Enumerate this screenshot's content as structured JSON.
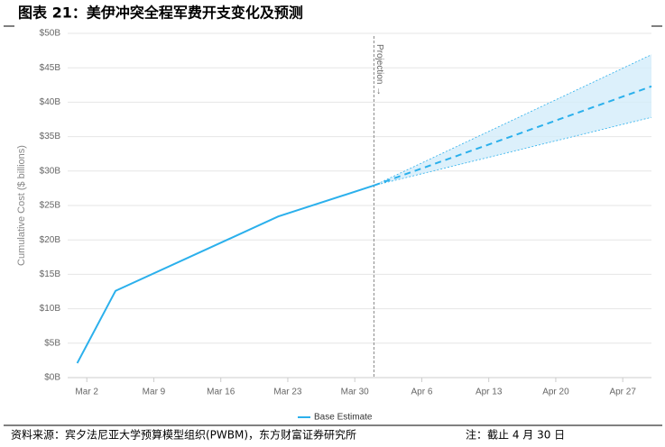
{
  "chart_data": {
    "type": "line",
    "title": "图表 21：美伊冲突全程军费开支变化及预测",
    "ylabel": "Cumulative Cost ($ billions)",
    "x": [
      "Mar 1",
      "Mar 5",
      "Mar 22",
      "Apr 1"
    ],
    "series": [
      {
        "name": "Base Estimate",
        "color": "#2bb0ec",
        "values": [
          2.1,
          12.6,
          23.4,
          27.9
        ]
      }
    ],
    "projection": {
      "label": "Projection →",
      "x": [
        "Apr 1",
        "Apr 30"
      ],
      "values": [
        27.9,
        42.3
      ],
      "upper": [
        27.9,
        46.9
      ],
      "lower": [
        27.9,
        37.8
      ],
      "color": "#2bb0ec",
      "band_color": "#d3ecfa"
    },
    "xlim": [
      "Feb 28",
      "Apr 30"
    ],
    "xticks": [
      "Mar 2",
      "Mar 9",
      "Mar 16",
      "Mar 23",
      "Mar 30",
      "Apr 6",
      "Apr 13",
      "Apr 20",
      "Apr 27"
    ],
    "ylim": [
      0,
      50
    ],
    "yticks": [
      {
        "value": 0,
        "label": "$0B"
      },
      {
        "value": 5,
        "label": "$5B"
      },
      {
        "value": 10,
        "label": "$10B"
      },
      {
        "value": 15,
        "label": "$15B"
      },
      {
        "value": 20,
        "label": "$20B"
      },
      {
        "value": 25,
        "label": "$25B"
      },
      {
        "value": 30,
        "label": "$30B"
      },
      {
        "value": 35,
        "label": "$35B"
      },
      {
        "value": 40,
        "label": "$40B"
      },
      {
        "value": 45,
        "label": "$45B"
      },
      {
        "value": 50,
        "label": "$50B"
      }
    ],
    "grid": true,
    "source": "资料来源：宾夕法尼亚大学预算模型组织(PWBM)，东方财富证券研究所",
    "note": "注：截止 4 月 30 日"
  }
}
